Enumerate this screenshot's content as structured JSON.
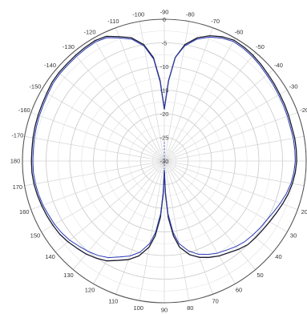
{
  "chart_data": {
    "type": "polar_line",
    "angle_unit": "degrees",
    "angle_zero_direction": "top",
    "angle_direction": "clockwise",
    "angle_tick_labels": [
      "-90",
      "-80",
      "-70",
      "-60",
      "-50",
      "-40",
      "-30",
      "-20",
      "-10",
      "0",
      "10",
      "20",
      "30",
      "40",
      "50",
      "60",
      "70",
      "80",
      "90",
      "100",
      "110",
      "120",
      "130",
      "140",
      "150",
      "160",
      "170",
      "180",
      "-170",
      "-160",
      "-150",
      "-140",
      "-130",
      "-120",
      "-110",
      "-100"
    ],
    "angle_tick_values": [
      0,
      10,
      20,
      30,
      40,
      50,
      60,
      70,
      80,
      90,
      100,
      110,
      120,
      130,
      140,
      150,
      160,
      170,
      180,
      190,
      200,
      210,
      220,
      230,
      240,
      250,
      260,
      270,
      280,
      290,
      300,
      310,
      320,
      330,
      340,
      350
    ],
    "radial_tick_labels": [
      "0",
      "-5",
      "-10",
      "-15",
      "-20",
      "-25",
      "-30"
    ],
    "radial_tick_values": [
      0,
      -5,
      -10,
      -15,
      -20,
      -25,
      -30
    ],
    "radial_range": [
      -30,
      0
    ],
    "minor_radial_step": 2.5,
    "grid": true,
    "series": [
      {
        "color": "#1a1a2e",
        "points": [
          [
            0,
            -19
          ],
          [
            3,
            -13
          ],
          [
            6,
            -8
          ],
          [
            10,
            -5
          ],
          [
            15,
            -3
          ],
          [
            20,
            -1.8
          ],
          [
            25,
            -1
          ],
          [
            30,
            -0.5
          ],
          [
            35,
            -0.6
          ],
          [
            40,
            -0.8
          ],
          [
            45,
            -1.1
          ],
          [
            50,
            -1.4
          ],
          [
            55,
            -1.6
          ],
          [
            60,
            -1.8
          ],
          [
            65,
            -1.9
          ],
          [
            70,
            -2
          ],
          [
            75,
            -2.1
          ],
          [
            80,
            -2
          ],
          [
            85,
            -2
          ],
          [
            90,
            -2
          ],
          [
            95,
            -2.2
          ],
          [
            100,
            -2.5
          ],
          [
            105,
            -2.9
          ],
          [
            110,
            -3.4
          ],
          [
            115,
            -3.9
          ],
          [
            120,
            -4.3
          ],
          [
            125,
            -4.6
          ],
          [
            130,
            -4.8
          ],
          [
            135,
            -5
          ],
          [
            140,
            -5.6
          ],
          [
            145,
            -6.3
          ],
          [
            150,
            -6.8
          ],
          [
            155,
            -7.5
          ],
          [
            160,
            -8.3
          ],
          [
            165,
            -9.5
          ],
          [
            170,
            -11.5
          ],
          [
            173,
            -14
          ],
          [
            176,
            -18
          ],
          [
            178,
            -23
          ],
          [
            180,
            -28
          ],
          [
            182,
            -23
          ],
          [
            184,
            -18
          ],
          [
            187,
            -14
          ],
          [
            190,
            -11.5
          ],
          [
            195,
            -9.2
          ],
          [
            200,
            -7.8
          ],
          [
            205,
            -6.8
          ],
          [
            210,
            -5.6
          ],
          [
            215,
            -4.9
          ],
          [
            220,
            -4.3
          ],
          [
            225,
            -3.9
          ],
          [
            230,
            -3.4
          ],
          [
            235,
            -3
          ],
          [
            240,
            -2.8
          ],
          [
            245,
            -2.6
          ],
          [
            250,
            -2.4
          ],
          [
            255,
            -2.2
          ],
          [
            260,
            -2
          ],
          [
            265,
            -1.9
          ],
          [
            270,
            -1.9
          ],
          [
            275,
            -1.9
          ],
          [
            280,
            -1.8
          ],
          [
            285,
            -1.7
          ],
          [
            290,
            -1.6
          ],
          [
            295,
            -1.5
          ],
          [
            300,
            -1.3
          ],
          [
            305,
            -1
          ],
          [
            310,
            -0.9
          ],
          [
            315,
            -0.9
          ],
          [
            320,
            -0.8
          ],
          [
            325,
            -0.7
          ],
          [
            330,
            -0.6
          ],
          [
            335,
            -0.9
          ],
          [
            340,
            -2
          ],
          [
            345,
            -3
          ],
          [
            350,
            -5
          ],
          [
            354,
            -8
          ],
          [
            357,
            -13
          ],
          [
            360,
            -19
          ]
        ]
      },
      {
        "color": "#2a3bb5",
        "points": [
          [
            0,
            -19
          ],
          [
            3,
            -13
          ],
          [
            6,
            -8
          ],
          [
            10,
            -5.3
          ],
          [
            15,
            -3.3
          ],
          [
            20,
            -2.1
          ],
          [
            25,
            -1.3
          ],
          [
            30,
            -0.8
          ],
          [
            35,
            -0.9
          ],
          [
            40,
            -1.1
          ],
          [
            45,
            -1.4
          ],
          [
            50,
            -1.7
          ],
          [
            55,
            -1.9
          ],
          [
            60,
            -2.1
          ],
          [
            65,
            -2.2
          ],
          [
            70,
            -2.3
          ],
          [
            75,
            -2.4
          ],
          [
            80,
            -2.3
          ],
          [
            85,
            -2.3
          ],
          [
            90,
            -2.3
          ],
          [
            95,
            -2.5
          ],
          [
            100,
            -2.8
          ],
          [
            105,
            -3.3
          ],
          [
            110,
            -3.9
          ],
          [
            115,
            -4.5
          ],
          [
            120,
            -5
          ],
          [
            125,
            -5.3
          ],
          [
            130,
            -5.6
          ],
          [
            135,
            -5.9
          ],
          [
            140,
            -6.4
          ],
          [
            145,
            -7
          ],
          [
            150,
            -7.5
          ],
          [
            155,
            -8.2
          ],
          [
            160,
            -9
          ],
          [
            165,
            -10.3
          ],
          [
            170,
            -12.3
          ],
          [
            173,
            -14.8
          ],
          [
            176,
            -18.8
          ],
          [
            178,
            -23.5
          ],
          [
            180,
            -28
          ],
          [
            182,
            -23.5
          ],
          [
            184,
            -18.8
          ],
          [
            187,
            -14.8
          ],
          [
            190,
            -12.3
          ],
          [
            195,
            -10
          ],
          [
            200,
            -8.6
          ],
          [
            205,
            -7.6
          ],
          [
            210,
            -6.4
          ],
          [
            215,
            -5.6
          ],
          [
            220,
            -5
          ],
          [
            225,
            -4.5
          ],
          [
            230,
            -3.9
          ],
          [
            235,
            -3.5
          ],
          [
            240,
            -3.2
          ],
          [
            245,
            -3
          ],
          [
            250,
            -2.7
          ],
          [
            255,
            -2.5
          ],
          [
            260,
            -2.3
          ],
          [
            265,
            -2.2
          ],
          [
            270,
            -2.2
          ],
          [
            275,
            -2.2
          ],
          [
            280,
            -2.1
          ],
          [
            285,
            -2
          ],
          [
            290,
            -1.9
          ],
          [
            295,
            -1.8
          ],
          [
            300,
            -1.6
          ],
          [
            305,
            -1.3
          ],
          [
            310,
            -1.2
          ],
          [
            315,
            -1.2
          ],
          [
            320,
            -1.1
          ],
          [
            325,
            -1
          ],
          [
            330,
            -0.9
          ],
          [
            335,
            -1.2
          ],
          [
            340,
            -2.3
          ],
          [
            345,
            -3.3
          ],
          [
            350,
            -5.3
          ],
          [
            354,
            -8.3
          ],
          [
            357,
            -13.3
          ],
          [
            360,
            -19
          ]
        ]
      }
    ]
  }
}
